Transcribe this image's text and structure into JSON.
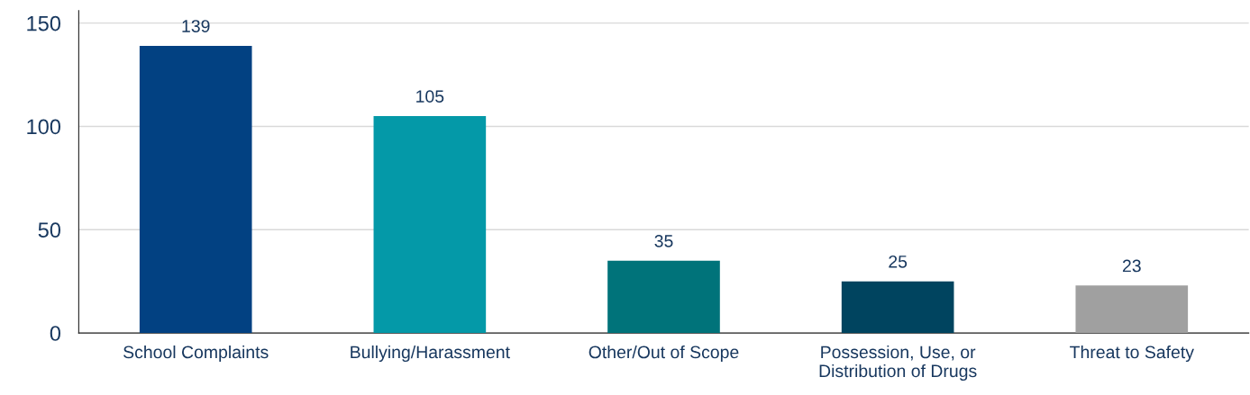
{
  "chart_data": {
    "type": "bar",
    "categories": [
      "School Complaints",
      "Bullying/Harassment",
      "Other/Out of Scope",
      "Possession, Use, or\nDistribution of Drugs",
      "Threat to Safety"
    ],
    "values": [
      139,
      105,
      35,
      25,
      23
    ],
    "colors": [
      "#024182",
      "#0499a8",
      "#00737a",
      "#00445f",
      "#a0a0a0"
    ],
    "ylim": [
      0,
      156
    ],
    "yticks": [
      0,
      50,
      100,
      150
    ],
    "grid": "y",
    "data_labels": true
  }
}
